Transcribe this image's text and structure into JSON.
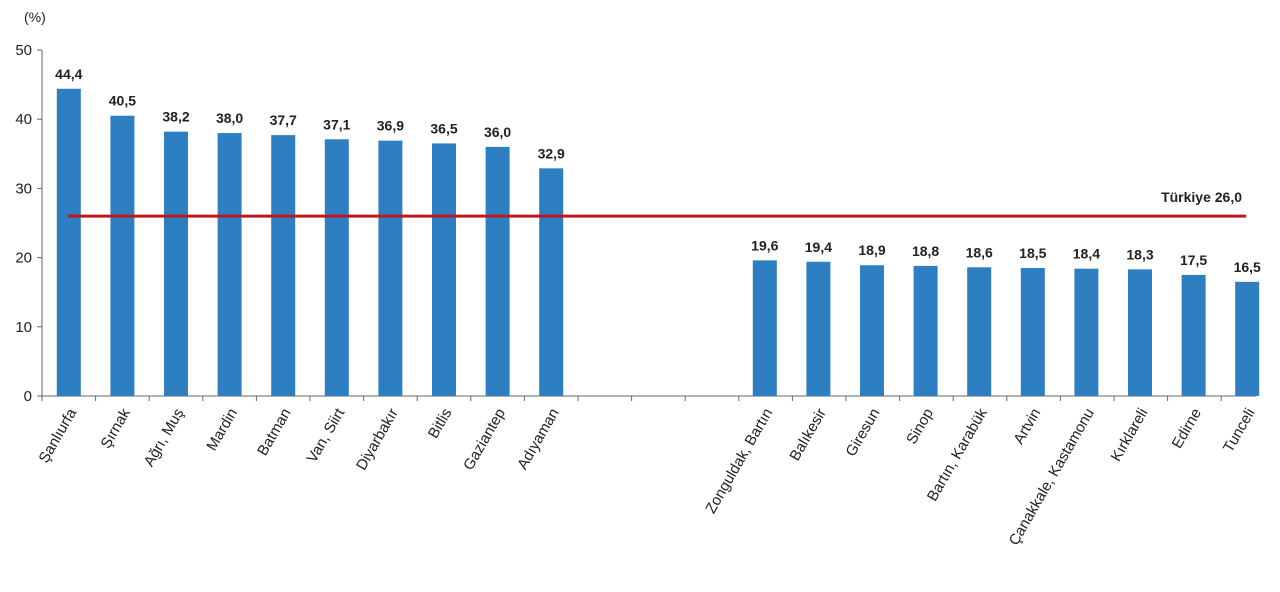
{
  "chart_data": {
    "type": "bar",
    "unit_label": "(%)",
    "ylim": [
      0,
      50
    ],
    "yticks": [
      0,
      10,
      20,
      30,
      40,
      50
    ],
    "grid": false,
    "bar_color": "#2e7fc2",
    "reference_line": {
      "label": "Türkiye 26,0",
      "value": 26.0,
      "color": "#c0161d"
    },
    "groups": [
      {
        "categories": [
          "Şanlıurfa",
          "Şırnak",
          "Ağrı, Muş",
          "Mardin",
          "Batman",
          "Van, Siirt",
          "Diyarbakır",
          "Bitlis",
          "Gaziantep",
          "Adıyaman"
        ],
        "values": [
          44.4,
          40.5,
          38.2,
          38.0,
          37.7,
          37.1,
          36.9,
          36.5,
          36.0,
          32.9
        ],
        "value_labels": [
          "44,4",
          "40,5",
          "38,2",
          "38,0",
          "37,7",
          "37,1",
          "36,9",
          "36,5",
          "36,0",
          "32,9"
        ]
      },
      {
        "categories": [
          "Zonguldak, Bartın",
          "Balıkesir",
          "Giresun",
          "Sinop",
          "Bartın, Karabük",
          "Artvin",
          "Çanakkale, Kastamonu",
          "Kırklareli",
          "Edirne",
          "Tunceli"
        ],
        "values": [
          19.6,
          19.4,
          18.9,
          18.8,
          18.6,
          18.5,
          18.4,
          18.3,
          17.5,
          16.5
        ],
        "value_labels": [
          "19,6",
          "19,4",
          "18,9",
          "18,8",
          "18,6",
          "18,5",
          "18,4",
          "18,3",
          "17,5",
          "16,5"
        ]
      }
    ]
  }
}
